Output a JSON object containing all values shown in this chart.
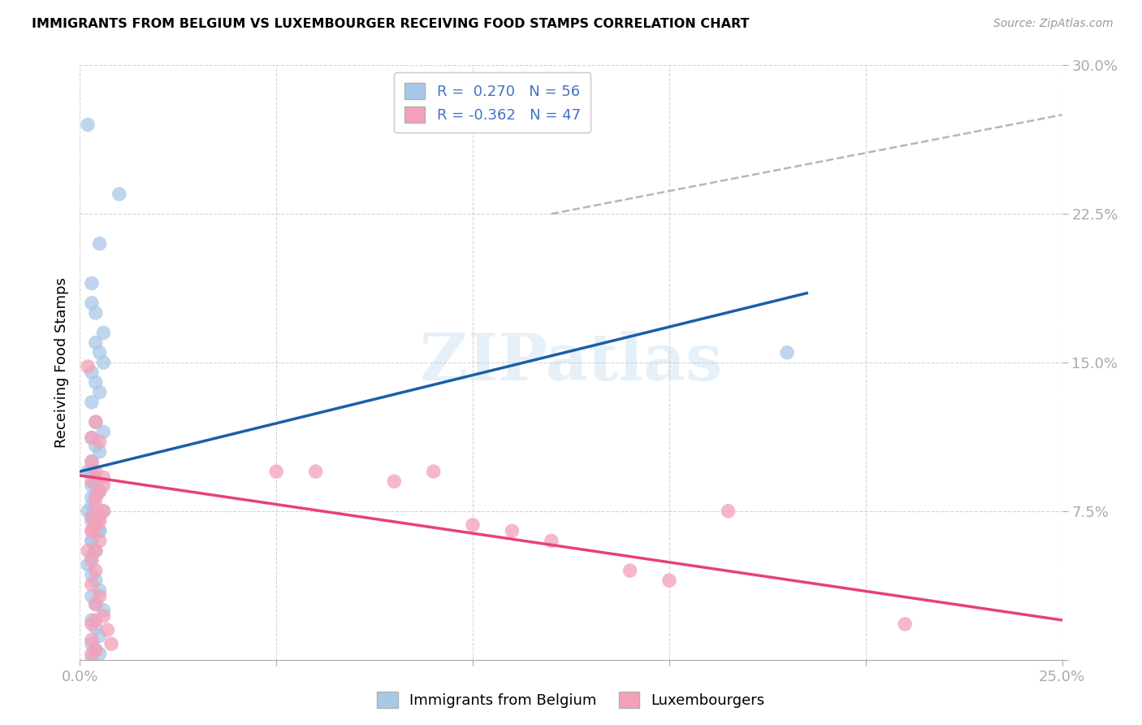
{
  "title": "IMMIGRANTS FROM BELGIUM VS LUXEMBOURGER RECEIVING FOOD STAMPS CORRELATION CHART",
  "source": "Source: ZipAtlas.com",
  "ylabel": "Receiving Food Stamps",
  "xlim": [
    0.0,
    0.25
  ],
  "ylim": [
    0.0,
    0.3
  ],
  "xtick_positions": [
    0.0,
    0.05,
    0.1,
    0.15,
    0.2,
    0.25
  ],
  "xticklabels": [
    "0.0%",
    "",
    "",
    "",
    "",
    "25.0%"
  ],
  "ytick_positions": [
    0.0,
    0.075,
    0.15,
    0.225,
    0.3
  ],
  "yticklabels": [
    "",
    "7.5%",
    "15.0%",
    "22.5%",
    "30.0%"
  ],
  "legend1_label": "R =  0.270   N = 56",
  "legend2_label": "R = -0.362   N = 47",
  "bottom_legend1": "Immigrants from Belgium",
  "bottom_legend2": "Luxembourgers",
  "blue_color": "#a8c8e8",
  "pink_color": "#f4a0b8",
  "blue_line_color": "#1a5fa8",
  "pink_line_color": "#e8407a",
  "dash_color": "#b0b0b0",
  "axis_color": "#4472C4",
  "grid_color": "#d0d0d0",
  "title_fontsize": 11.5,
  "tick_fontsize": 13,
  "legend_fontsize": 13,
  "blue_x": [
    0.002,
    0.005,
    0.01,
    0.003,
    0.003,
    0.004,
    0.006,
    0.004,
    0.005,
    0.006,
    0.003,
    0.004,
    0.005,
    0.003,
    0.004,
    0.006,
    0.003,
    0.004,
    0.005,
    0.003,
    0.002,
    0.004,
    0.003,
    0.005,
    0.004,
    0.003,
    0.006,
    0.003,
    0.004,
    0.005,
    0.003,
    0.004,
    0.003,
    0.002,
    0.003,
    0.004,
    0.005,
    0.003,
    0.004,
    0.006,
    0.003,
    0.004,
    0.005,
    0.003,
    0.004,
    0.005,
    0.003,
    0.18,
    0.003,
    0.004,
    0.004,
    0.003,
    0.002,
    0.003,
    0.005,
    0.003
  ],
  "blue_y": [
    0.27,
    0.21,
    0.235,
    0.19,
    0.18,
    0.175,
    0.165,
    0.16,
    0.155,
    0.15,
    0.145,
    0.14,
    0.135,
    0.13,
    0.12,
    0.115,
    0.112,
    0.108,
    0.105,
    0.1,
    0.095,
    0.09,
    0.088,
    0.085,
    0.082,
    0.078,
    0.075,
    0.072,
    0.068,
    0.065,
    0.06,
    0.055,
    0.052,
    0.048,
    0.043,
    0.04,
    0.035,
    0.032,
    0.028,
    0.025,
    0.02,
    0.016,
    0.012,
    0.008,
    0.005,
    0.003,
    0.001,
    0.155,
    0.095,
    0.092,
    0.088,
    0.082,
    0.075,
    0.07,
    0.065,
    0.06
  ],
  "pink_x": [
    0.002,
    0.003,
    0.004,
    0.003,
    0.005,
    0.004,
    0.003,
    0.005,
    0.006,
    0.004,
    0.003,
    0.004,
    0.005,
    0.006,
    0.003,
    0.004,
    0.005,
    0.002,
    0.003,
    0.004,
    0.003,
    0.005,
    0.004,
    0.006,
    0.003,
    0.007,
    0.004,
    0.003,
    0.008,
    0.004,
    0.003,
    0.006,
    0.005,
    0.004,
    0.003,
    0.05,
    0.06,
    0.08,
    0.09,
    0.165,
    0.1,
    0.11,
    0.12,
    0.14,
    0.15,
    0.21,
    0.004
  ],
  "pink_y": [
    0.148,
    0.112,
    0.12,
    0.1,
    0.11,
    0.095,
    0.09,
    0.085,
    0.092,
    0.078,
    0.072,
    0.082,
    0.07,
    0.088,
    0.065,
    0.068,
    0.06,
    0.055,
    0.05,
    0.045,
    0.038,
    0.032,
    0.028,
    0.022,
    0.018,
    0.015,
    0.02,
    0.01,
    0.008,
    0.005,
    0.003,
    0.075,
    0.072,
    0.068,
    0.065,
    0.095,
    0.095,
    0.09,
    0.095,
    0.075,
    0.068,
    0.065,
    0.06,
    0.045,
    0.04,
    0.018,
    0.055
  ],
  "blue_line_x0": 0.0,
  "blue_line_x1": 0.185,
  "blue_line_y0": 0.095,
  "blue_line_y1": 0.185,
  "pink_line_x0": 0.0,
  "pink_line_x1": 0.25,
  "pink_line_y0": 0.093,
  "pink_line_y1": 0.02,
  "dash_line_x0": 0.12,
  "dash_line_x1": 0.25,
  "dash_line_y0": 0.225,
  "dash_line_y1": 0.275
}
